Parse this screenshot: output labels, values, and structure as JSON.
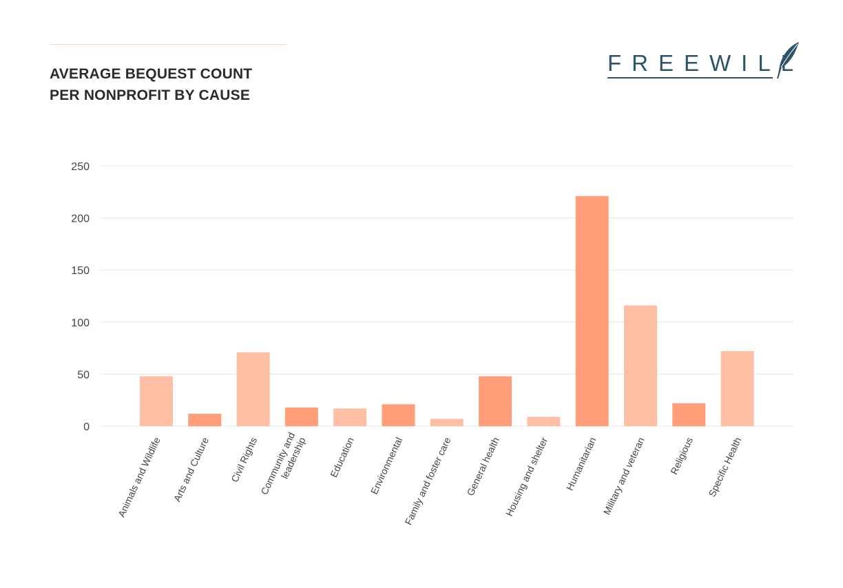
{
  "header": {
    "title_line1": "AVERAGE BEQUEST COUNT",
    "title_line2": "PER NONPROFIT BY CAUSE"
  },
  "logo": {
    "text": "FREEWILL",
    "icon": "feather-icon",
    "color": "#2e5266"
  },
  "colors": {
    "light_bar": "#ffbfa4",
    "dark_bar": "#ff9e79",
    "grid": "#e8e8e8"
  },
  "chart_data": {
    "type": "bar",
    "title": "AVERAGE BEQUEST COUNT PER NONPROFIT BY CAUSE",
    "xlabel": "",
    "ylabel": "",
    "ylim": [
      0,
      250
    ],
    "yticks": [
      0,
      50,
      100,
      150,
      200,
      250
    ],
    "grid": true,
    "categories": [
      [
        "Animals and Wildlife"
      ],
      [
        "Arts and Culture"
      ],
      [
        "Civil Rights"
      ],
      [
        "Community and",
        "leadership"
      ],
      [
        "Education"
      ],
      [
        "Environmental"
      ],
      [
        "Family and foster care"
      ],
      [
        "General health"
      ],
      [
        "Housing and shelter"
      ],
      [
        "Humanitarian"
      ],
      [
        "Military and veteran"
      ],
      [
        "Religious"
      ],
      [
        "Specific Health"
      ]
    ],
    "values": [
      48,
      12,
      71,
      18,
      17,
      21,
      7,
      48,
      9,
      221,
      116,
      22,
      72
    ],
    "bar_shades": [
      "light",
      "dark",
      "light",
      "dark",
      "light",
      "dark",
      "light",
      "dark",
      "light",
      "dark",
      "light",
      "dark",
      "light"
    ]
  }
}
